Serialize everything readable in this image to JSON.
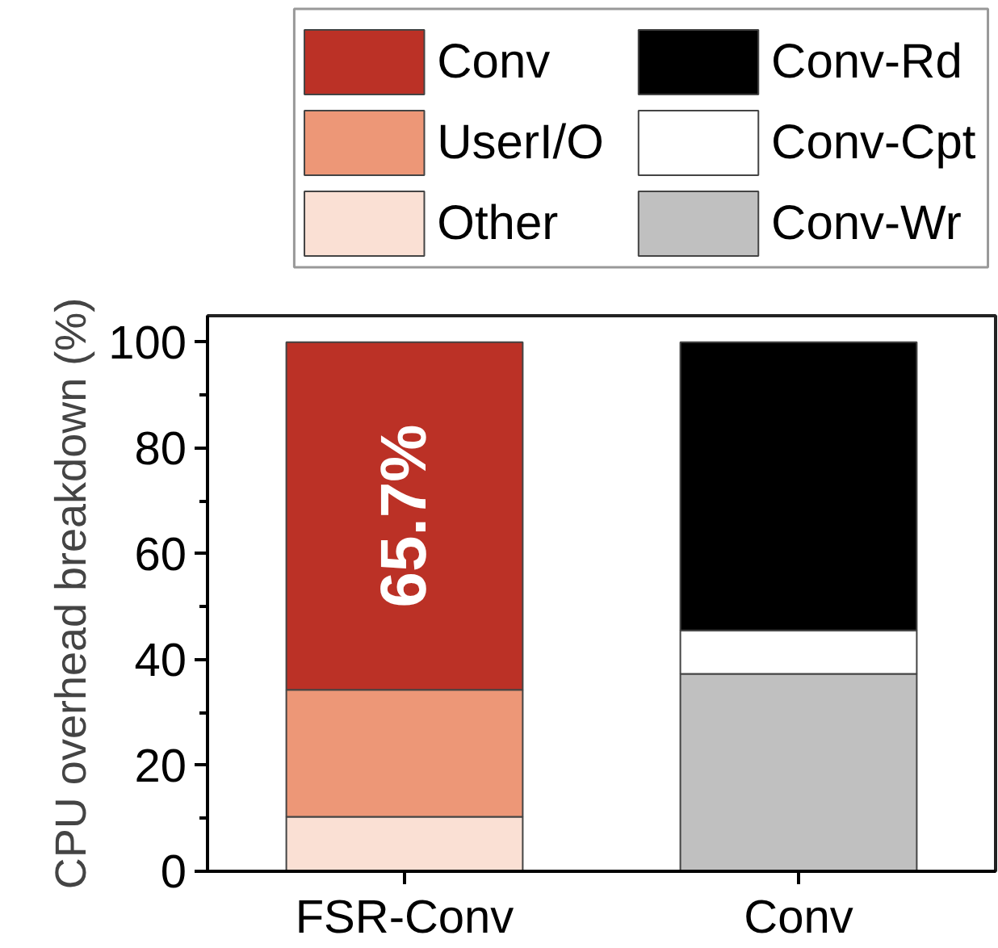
{
  "chart_data": {
    "type": "bar",
    "stacked": true,
    "ylabel": "CPU overhead breakdown (%)",
    "categories": [
      "FSR-Conv",
      "Conv"
    ],
    "series": [
      {
        "name": "Other",
        "color": "#fae0d4",
        "values": [
          10.3,
          null
        ]
      },
      {
        "name": "UserI/O",
        "color": "#ed9777",
        "values": [
          24.0,
          null
        ]
      },
      {
        "name": "Conv",
        "color": "#bb3126",
        "values": [
          65.7,
          null
        ],
        "value_labels": [
          "65.7%",
          null
        ]
      },
      {
        "name": "Conv-Wr",
        "color": "#c0c0c0",
        "values": [
          null,
          37.3
        ]
      },
      {
        "name": "Conv-Cpt",
        "color": "#ffffff",
        "values": [
          null,
          8.2
        ]
      },
      {
        "name": "Conv-Rd",
        "color": "#000000",
        "values": [
          null,
          54.5
        ]
      }
    ],
    "ylim": [
      0,
      105
    ],
    "yticks": [
      0,
      {
        "value": 10,
        "label": null
      },
      20,
      {
        "value": 30,
        "label": null
      },
      40,
      {
        "value": 50,
        "label": null
      },
      60,
      {
        "value": 70,
        "label": null
      },
      80,
      {
        "value": 90,
        "label": null
      },
      100
    ],
    "grid": false,
    "legend": "top"
  }
}
